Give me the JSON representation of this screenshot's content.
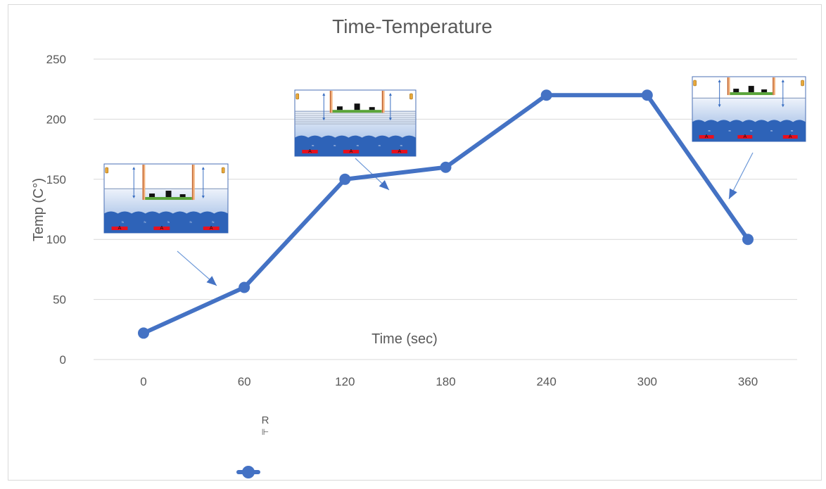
{
  "chart_data": {
    "type": "line",
    "title": "Time-Temperature",
    "xlabel": "Time (sec)",
    "ylabel": "Temp (C°)",
    "categories": [
      "0",
      "60",
      "120",
      "180",
      "240",
      "300",
      "360"
    ],
    "x": [
      0,
      60,
      120,
      180,
      240,
      300,
      360
    ],
    "series": [
      {
        "values": [
          22,
          60,
          150,
          160,
          220,
          220,
          100
        ]
      }
    ],
    "yticks": [
      "0",
      "50",
      "100",
      "150",
      "200",
      "250"
    ],
    "ylim": [
      0,
      250
    ],
    "grid": true,
    "legend": {
      "label": "R",
      "placement": "bottom-left"
    }
  },
  "colors": {
    "series": "#4472c4",
    "grid": "#d9d9d9",
    "text": "#595959",
    "arrow": "#6c98d8"
  },
  "insets": [
    {
      "name": "inset-stage-1",
      "target_x": 60,
      "target_y": 60
    },
    {
      "name": "inset-stage-2",
      "target_x": 120,
      "target_y": 150
    },
    {
      "name": "inset-stage-3",
      "target_x": 360,
      "target_y": 100
    }
  ]
}
